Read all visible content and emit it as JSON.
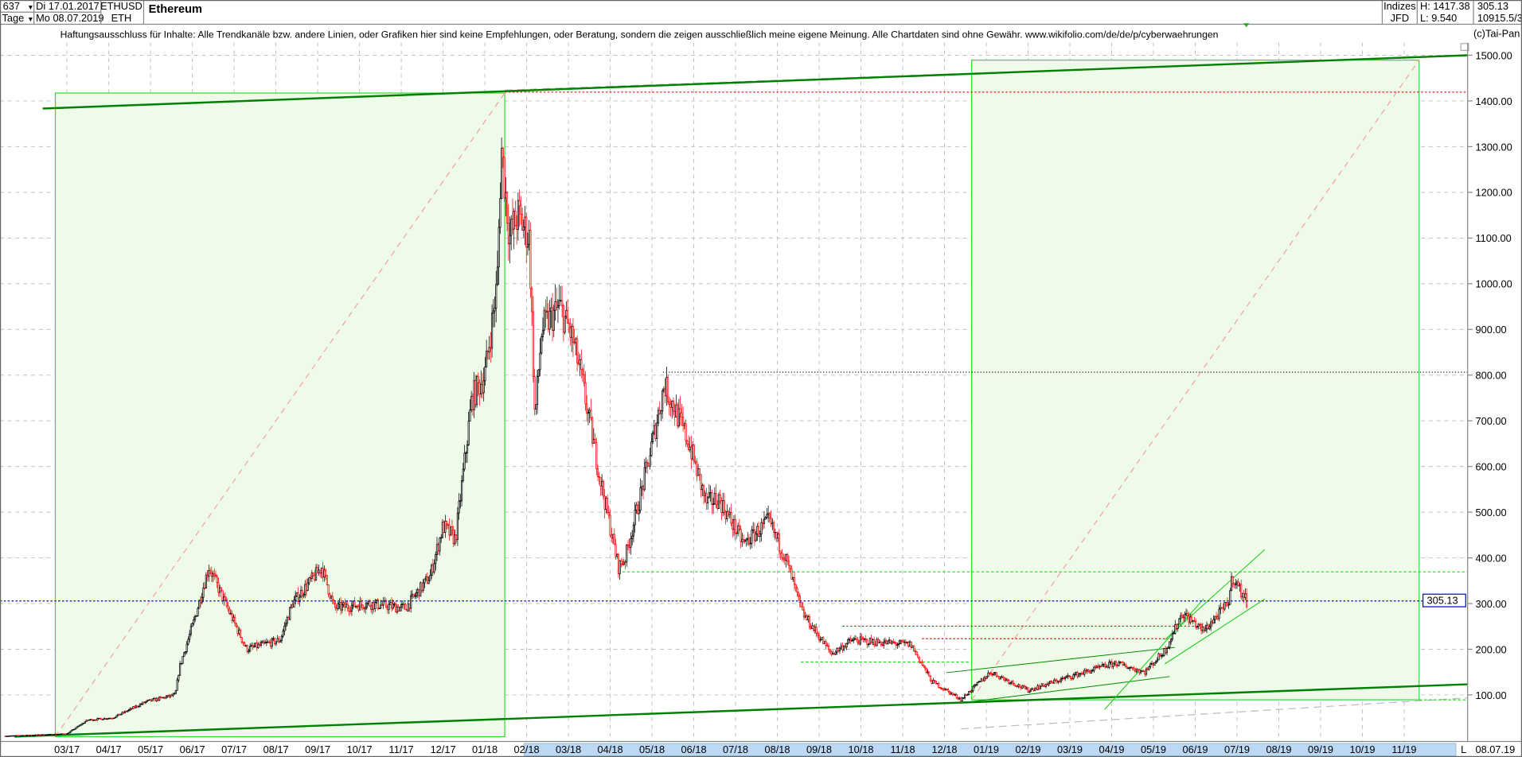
{
  "header": {
    "bar_count": "637",
    "period": "Tage",
    "start_date": "Di 17.01.2017",
    "end_date": "Mo 08.07.2019",
    "symbol": "ETHUSD",
    "symbol_short": "ETH",
    "title": "Ethereum",
    "category": "Indizes",
    "source": "JFD",
    "high": "H: 1417.38",
    "low": "L: 9.540",
    "last": "305.13",
    "extra": "10915.5/3",
    "copyright": "(c)Tai-Pan"
  },
  "disclaimer": "Haftungsausschluss für Inhalte: Alle Trendkanäle bzw. andere Linien, oder Grafiken hier sind keine Empfehlungen, oder Beratung, sondern die zeigen ausschließlich meine eigene Meinung. Alle Chartdaten sind ohne Gewähr.  www.wikifolio.com/de/de/p/cyberwaehrungen",
  "colors": {
    "up": "#000000",
    "down": "#ff0000",
    "last_price": "#0000ff",
    "trendline": "#008000",
    "box_fill": "#eefbe9",
    "box_stroke": "#33dd33",
    "highlight_axis": "#bcd8f5"
  },
  "chart_data": {
    "type": "candlestick",
    "title": "Ethereum",
    "ylim": [
      0,
      1500
    ],
    "y_ticks": [
      "100.00",
      "200.00",
      "300.00",
      "400.00",
      "500.00",
      "600.00",
      "700.00",
      "800.00",
      "900.00",
      "1000.00",
      "1100.00",
      "1200.00",
      "1300.00",
      "1400.00",
      "1500.00"
    ],
    "x_ticks": [
      "03/17",
      "04/17",
      "05/17",
      "06/17",
      "07/17",
      "08/17",
      "09/17",
      "10/17",
      "11/17",
      "12/17",
      "01/18",
      "02/18",
      "03/18",
      "04/18",
      "05/18",
      "06/18",
      "07/18",
      "08/18",
      "09/18",
      "10/18",
      "11/18",
      "12/18",
      "01/19",
      "02/19",
      "03/19",
      "04/19",
      "05/19",
      "06/19",
      "07/19",
      "08/19",
      "09/19",
      "10/19",
      "11/19"
    ],
    "x_end_marker": "L",
    "x_end_label": "08.07.19",
    "last_price": 305.13,
    "last_price_label": "305.13",
    "high": 1417.38,
    "low": 9.54,
    "grid": true,
    "approx_closes": [
      [
        "2017-01-17",
        10
      ],
      [
        "2017-03-01",
        15
      ],
      [
        "2017-03-16",
        45
      ],
      [
        "2017-04-04",
        50
      ],
      [
        "2017-04-28",
        85
      ],
      [
        "2017-05-19",
        100
      ],
      [
        "2017-05-22",
        160
      ],
      [
        "2017-06-02",
        260
      ],
      [
        "2017-06-13",
        380
      ],
      [
        "2017-06-25",
        300
      ],
      [
        "2017-07-10",
        200
      ],
      [
        "2017-08-04",
        220
      ],
      [
        "2017-08-13",
        300
      ],
      [
        "2017-09-04",
        380
      ],
      [
        "2017-09-13",
        290
      ],
      [
        "2017-10-07",
        300
      ],
      [
        "2017-11-04",
        290
      ],
      [
        "2017-11-22",
        360
      ],
      [
        "2017-12-01",
        470
      ],
      [
        "2017-12-10",
        440
      ],
      [
        "2017-12-22",
        750
      ],
      [
        "2018-01-01",
        800
      ],
      [
        "2018-01-10",
        1000
      ],
      [
        "2018-01-13",
        1300
      ],
      [
        "2018-01-19",
        1100
      ],
      [
        "2018-01-25",
        1150
      ],
      [
        "2018-02-03",
        1100
      ],
      [
        "2018-02-07",
        700
      ],
      [
        "2018-02-12",
        900
      ],
      [
        "2018-02-25",
        950
      ],
      [
        "2018-03-04",
        880
      ],
      [
        "2018-03-10",
        800
      ],
      [
        "2018-03-25",
        560
      ],
      [
        "2018-04-07",
        380
      ],
      [
        "2018-04-12",
        400
      ],
      [
        "2018-04-28",
        600
      ],
      [
        "2018-05-10",
        780
      ],
      [
        "2018-05-28",
        650
      ],
      [
        "2018-06-10",
        520
      ],
      [
        "2018-06-19",
        530
      ],
      [
        "2018-07-07",
        430
      ],
      [
        "2018-07-25",
        480
      ],
      [
        "2018-08-07",
        400
      ],
      [
        "2018-08-19",
        280
      ],
      [
        "2018-09-10",
        190
      ],
      [
        "2018-09-25",
        220
      ],
      [
        "2018-11-07",
        210
      ],
      [
        "2018-11-22",
        130
      ],
      [
        "2018-12-13",
        90
      ],
      [
        "2019-01-04",
        150
      ],
      [
        "2019-02-01",
        110
      ],
      [
        "2019-03-01",
        140
      ],
      [
        "2019-04-04",
        170
      ],
      [
        "2019-04-25",
        150
      ],
      [
        "2019-05-10",
        200
      ],
      [
        "2019-05-22",
        280
      ],
      [
        "2019-06-07",
        240
      ],
      [
        "2019-06-25",
        300
      ],
      [
        "2019-06-28",
        360
      ],
      [
        "2019-07-08",
        305
      ]
    ],
    "horizontal_levels": [
      {
        "value": 1417.38,
        "style": "red-dotted"
      },
      {
        "value": 805,
        "style": "black-dotted"
      },
      {
        "value": 365,
        "style": "green-dotted"
      },
      {
        "value": 305.13,
        "style": "blue-dotted"
      }
    ]
  }
}
